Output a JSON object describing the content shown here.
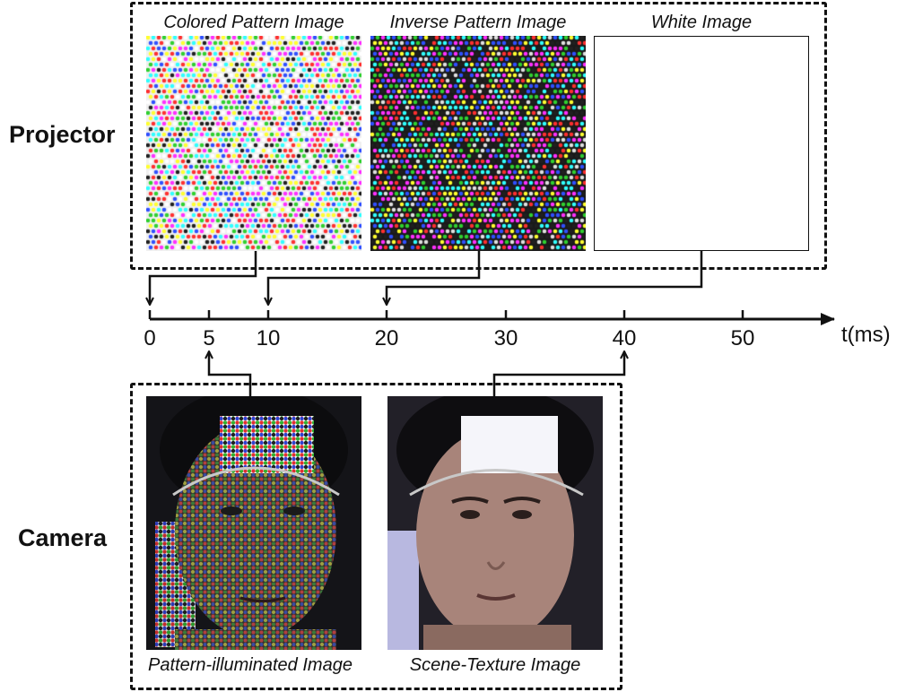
{
  "projector": {
    "label": "Projector",
    "images": [
      {
        "caption": "Colored Pattern Image"
      },
      {
        "caption": "Inverse Pattern Image"
      },
      {
        "caption": "White Image"
      }
    ]
  },
  "camera": {
    "label": "Camera",
    "images": [
      {
        "caption": "Pattern-illuminated Image"
      },
      {
        "caption": "Scene-Texture Image"
      }
    ]
  },
  "timeline": {
    "axis_label": "t(ms)",
    "ticks": [
      "0",
      "5",
      "10",
      "20",
      "30",
      "40",
      "50"
    ]
  },
  "colors": {
    "line": "#111111",
    "pattern_palette": [
      "#ff3030",
      "#30d030",
      "#3050ff",
      "#ffff30",
      "#30ffff",
      "#ff30ff",
      "#202020",
      "#ffffff"
    ],
    "inverse_palette": [
      "#ff30ff",
      "#30ffff",
      "#ffff30",
      "#3050ff",
      "#30d030",
      "#ff3030",
      "#202020",
      "#e0e0e0"
    ]
  }
}
